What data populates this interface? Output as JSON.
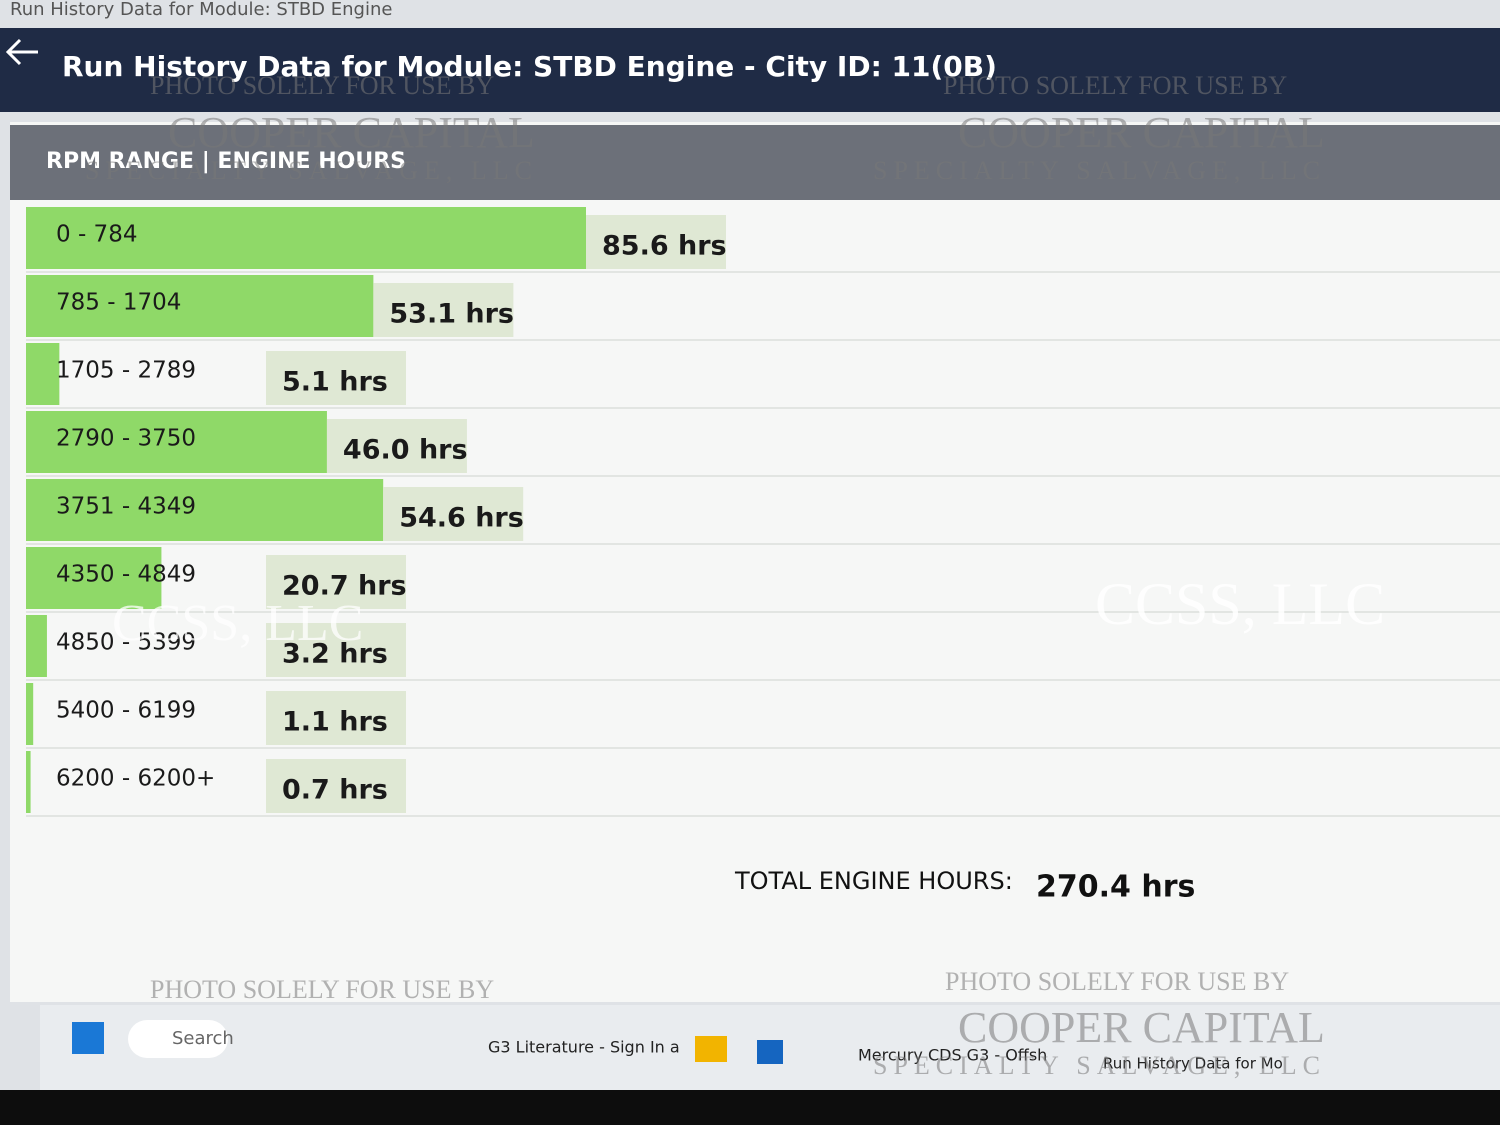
{
  "window": {
    "caption": "Run History Data for Module: STBD Engine",
    "title": "Run History Data for Module: STBD Engine - City ID: 11(0B)"
  },
  "chart_data": {
    "type": "bar",
    "orientation": "horizontal",
    "header": "RPM RANGE | ENGINE HOURS",
    "categories": [
      "0 - 784",
      "785 - 1704",
      "1705 - 2789",
      "2790 - 3750",
      "3751 - 4349",
      "4350 - 4849",
      "4850 - 5399",
      "5400 - 6199",
      "6200 - 6200+"
    ],
    "values": [
      85.6,
      53.1,
      5.1,
      46.0,
      54.6,
      20.7,
      3.2,
      1.1,
      0.7
    ],
    "value_labels": [
      "85.6 hrs",
      "53.1 hrs",
      "5.1 hrs",
      "46.0 hrs",
      "54.6 hrs",
      "20.7 hrs",
      "3.2 hrs",
      "1.1 hrs",
      "0.7 hrs"
    ],
    "color": "#8fd968",
    "total_label": "TOTAL ENGINE HOURS:",
    "total_value_label": "270.4 hrs"
  },
  "taskbar": {
    "search": "Search",
    "items": [
      "G3 Literature - Sign In a",
      "Mercury CDS G3 - Offsh",
      "Run History Data for Mo"
    ]
  },
  "watermarks": [
    "PHOTO SOLELY FOR USE BY",
    "COOPER CAPITAL",
    "SPECIALTY SALVAGE, LLC",
    "CCSS, LLC"
  ]
}
